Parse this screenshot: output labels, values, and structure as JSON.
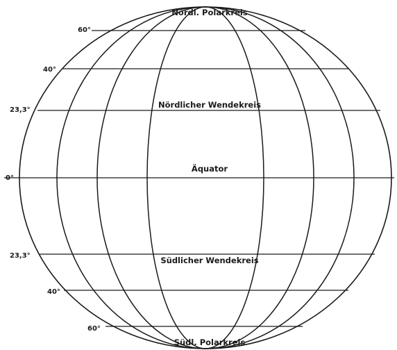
{
  "globe": {
    "meridian_count": 6,
    "zones": [
      {
        "key": "n-polar",
        "latitude": "60°",
        "label": "Nördl. Polarkreis"
      },
      {
        "key": "n-mid",
        "latitude": "40°",
        "label": ""
      },
      {
        "key": "n-tropic",
        "latitude": "23,3°",
        "label": "Nördlicher Wendekreis"
      },
      {
        "key": "equator",
        "latitude": "0°",
        "label": "Äquator"
      },
      {
        "key": "s-tropic",
        "latitude": "23,3°",
        "label": "Südlicher Wendekreis"
      },
      {
        "key": "s-mid",
        "latitude": "40°",
        "label": ""
      },
      {
        "key": "s-polar",
        "latitude": "60°",
        "label": "Südl. Polarkreis"
      }
    ]
  }
}
